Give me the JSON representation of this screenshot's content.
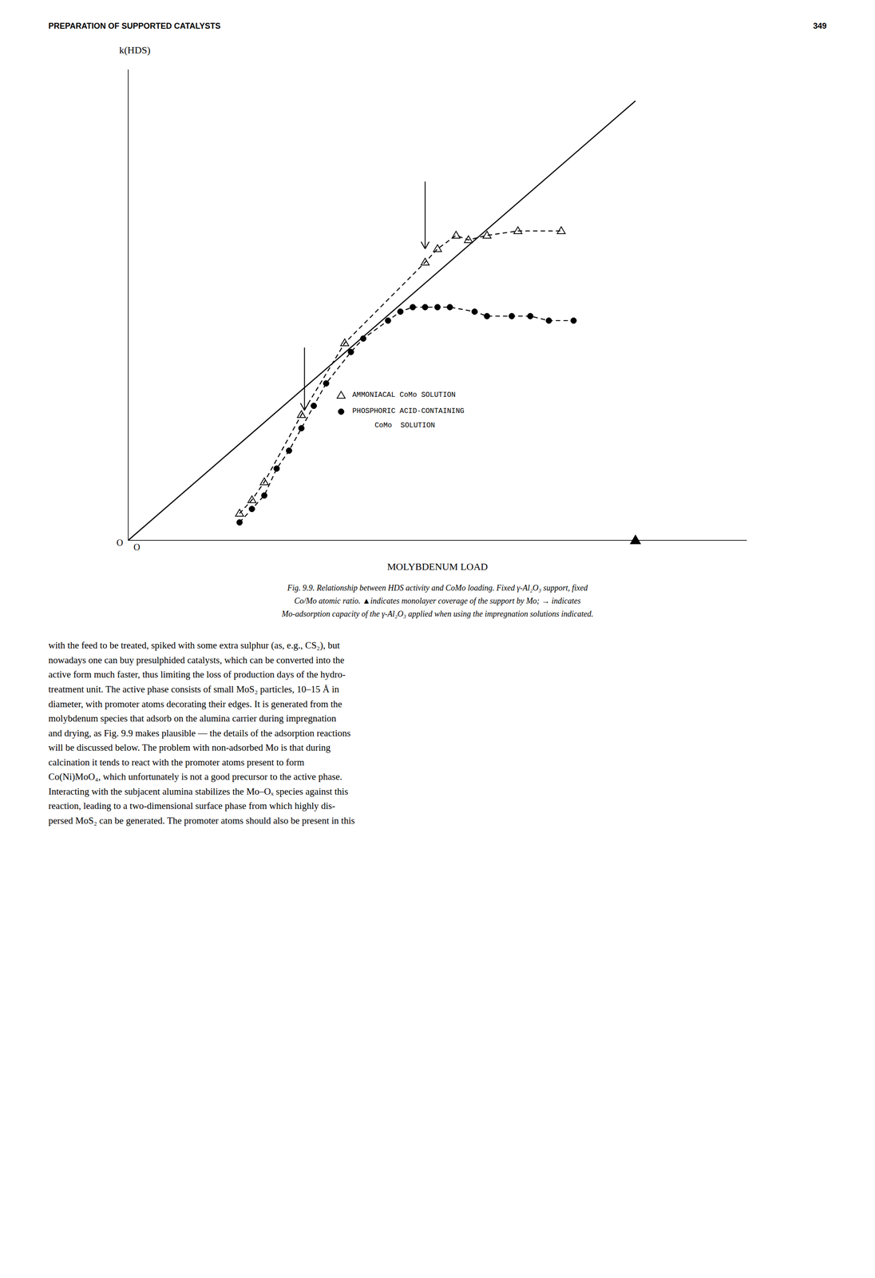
{
  "chart_data": {
    "type": "line",
    "x_label": "MOLYBDENUM LOAD",
    "y_label": "k(HDS)",
    "xlim": [
      0,
      1.0
    ],
    "ylim": [
      0,
      1.05
    ],
    "xticks": [],
    "yticks": [],
    "tick_labels": false,
    "grid": false,
    "series": [
      {
        "name": "AMMONIACAL CoMo SOLUTION",
        "color": "#000000",
        "marker": "triangle_open",
        "line_style": "dashed",
        "x": [
          0.18,
          0.2,
          0.22,
          0.28,
          0.35,
          0.48,
          0.5,
          0.53,
          0.55,
          0.58,
          0.63,
          0.7
        ],
        "values": [
          0.06,
          0.09,
          0.13,
          0.28,
          0.44,
          0.62,
          0.65,
          0.68,
          0.67,
          0.68,
          0.69,
          0.69
        ]
      },
      {
        "name": "PHOSPHORIC ACID-CONTAINING\nCoMo  SOLUTION",
        "color": "#000000",
        "marker": "circle",
        "line_style": "dashed",
        "x": [
          0.18,
          0.2,
          0.22,
          0.24,
          0.26,
          0.28,
          0.3,
          0.32,
          0.36,
          0.38,
          0.42,
          0.44,
          0.46,
          0.48,
          0.5,
          0.52,
          0.56,
          0.58,
          0.62,
          0.65,
          0.68,
          0.72
        ],
        "values": [
          0.04,
          0.07,
          0.1,
          0.16,
          0.2,
          0.25,
          0.3,
          0.35,
          0.42,
          0.45,
          0.49,
          0.51,
          0.52,
          0.52,
          0.52,
          0.52,
          0.51,
          0.5,
          0.5,
          0.5,
          0.49,
          0.49
        ]
      },
      {
        "color": "#000000",
        "marker": "none",
        "line_style": "solid",
        "x": [
          0.0,
          0.82
        ],
        "values": [
          0.0,
          0.98
        ]
      }
    ],
    "arrows": [
      {
        "x": 0.48,
        "y_from": 0.8,
        "y_to": 0.65
      },
      {
        "x": 0.285,
        "y_from": 0.43,
        "y_to": 0.29
      }
    ],
    "markers": [
      {
        "x": 0.82,
        "y": 0.0,
        "marker": "triangle",
        "color": "#000000"
      }
    ],
    "origin_labels": [
      "O",
      "O"
    ],
    "header": [
      "PREPARATION OF SUPPORTED CATALYSTS",
      "349"
    ],
    "caption": [
      "Fig. 9.9. Relationship between HDS activity and CoMo loading. Fixed γ-Al₂O₃ support, fixed",
      "Co/Mo atomic ratio. ▲indicates monolayer coverage of the support by Mo; → indicates",
      "Mo-adsorption capacity of the γ-Al₂O₃ applied when using the impregnation solutions indicated."
    ],
    "body_text": "with the feed to be treated, spiked with some extra sulphur (as, e.g., CS₂), but\nnowadays one can buy presulphided catalysts, which can be converted into the\nactive form much faster, thus limiting the loss of production days of the hydro-\ntreatment unit. The active phase consists of small MoS₂ particles, 10–15 Å in\ndiameter, with promoter atoms decorating their edges. It is generated from the\nmolybdenum species that adsorb on the alumina carrier during impregnation\nand drying, as Fig. 9.9 makes plausible — the details of the adsorption reactions\nwill be discussed below. The problem with non-adsorbed Mo is that during\ncalcination it tends to react with the promoter atoms present to form\nCo(Ni)MoO₄, which unfortunately is not a good precursor to the active phase.\nInteracting with the subjacent alumina stabilizes the Mo–Oₓ species against this\nreaction, leading to a two-dimensional surface phase from which highly dis-\npersed MoS₂ can be generated. The promoter atoms should also be present in this"
  }
}
